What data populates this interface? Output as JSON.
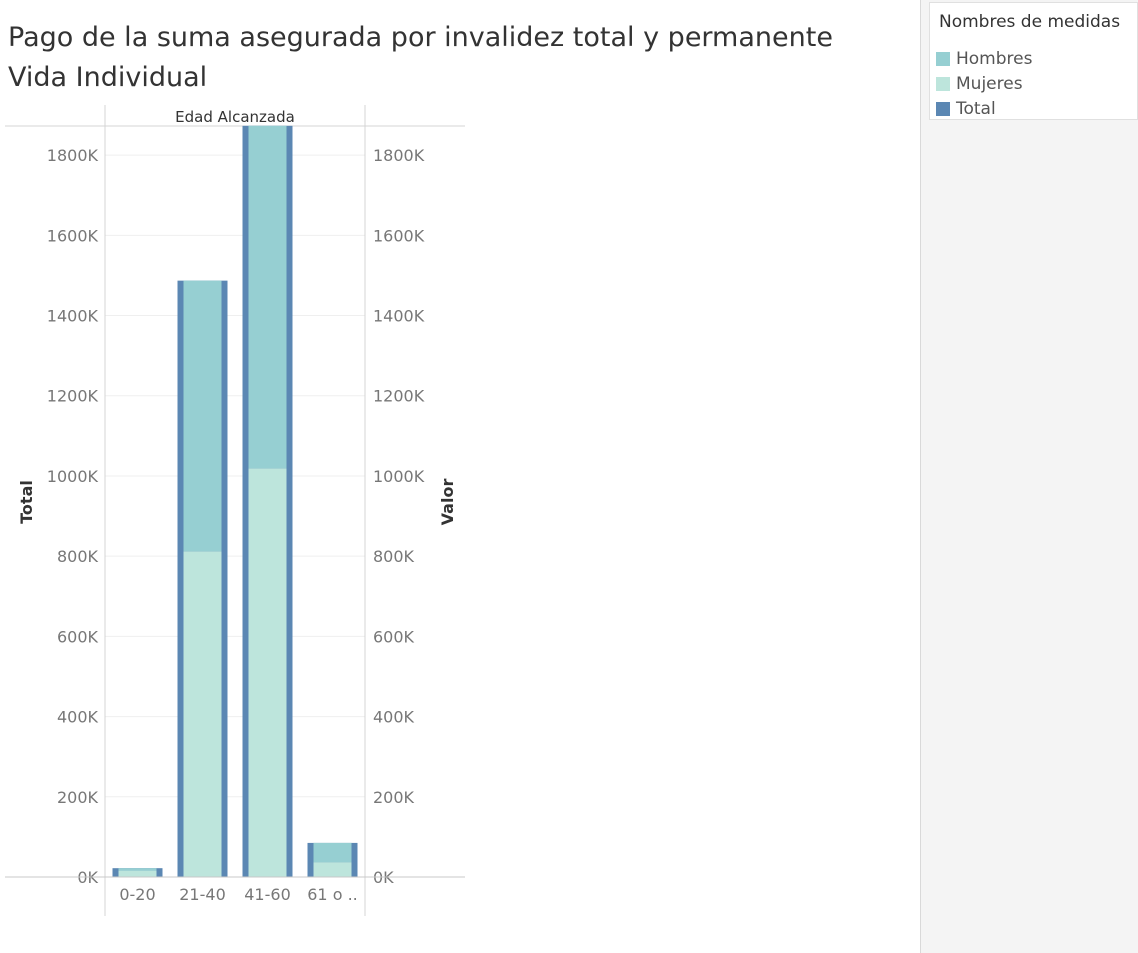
{
  "title_lines": [
    "Pago de la suma asegurada por invalidez total y permanente",
    "Vida Individual"
  ],
  "legend": {
    "title": "Nombres de medidas",
    "items": [
      {
        "label": "Hombres",
        "color": "#96cfd2"
      },
      {
        "label": "Mujeres",
        "color": "#bde5dc"
      },
      {
        "label": "Total",
        "color": "#5b87b3"
      }
    ]
  },
  "chart_data": {
    "type": "bar",
    "column_header": "Edad Alcanzada",
    "categories": [
      "0-20",
      "21-40",
      "41-60",
      "61 o .."
    ],
    "ylabel_left": "Total",
    "ylabel_right": "Valor",
    "ylim": [
      0,
      1900000
    ],
    "yticks": [
      0,
      200000,
      400000,
      600000,
      800000,
      1000000,
      1200000,
      1400000,
      1600000,
      1800000
    ],
    "ytick_labels": [
      "0K",
      "200K",
      "400K",
      "600K",
      "800K",
      "1000K",
      "1200K",
      "1400K",
      "1600K",
      "1800K"
    ],
    "series": [
      {
        "name": "Total",
        "axis": "left",
        "values": [
          22000,
          1487000,
          1873000,
          85000
        ]
      },
      {
        "name": "Mujeres",
        "axis": "right",
        "stack": "valor",
        "values": [
          16000,
          812000,
          1019000,
          37000
        ]
      },
      {
        "name": "Hombres",
        "axis": "right",
        "stack": "valor",
        "values": [
          6000,
          675000,
          854000,
          48000
        ]
      }
    ],
    "grid": true,
    "legend_position": "top-right"
  }
}
